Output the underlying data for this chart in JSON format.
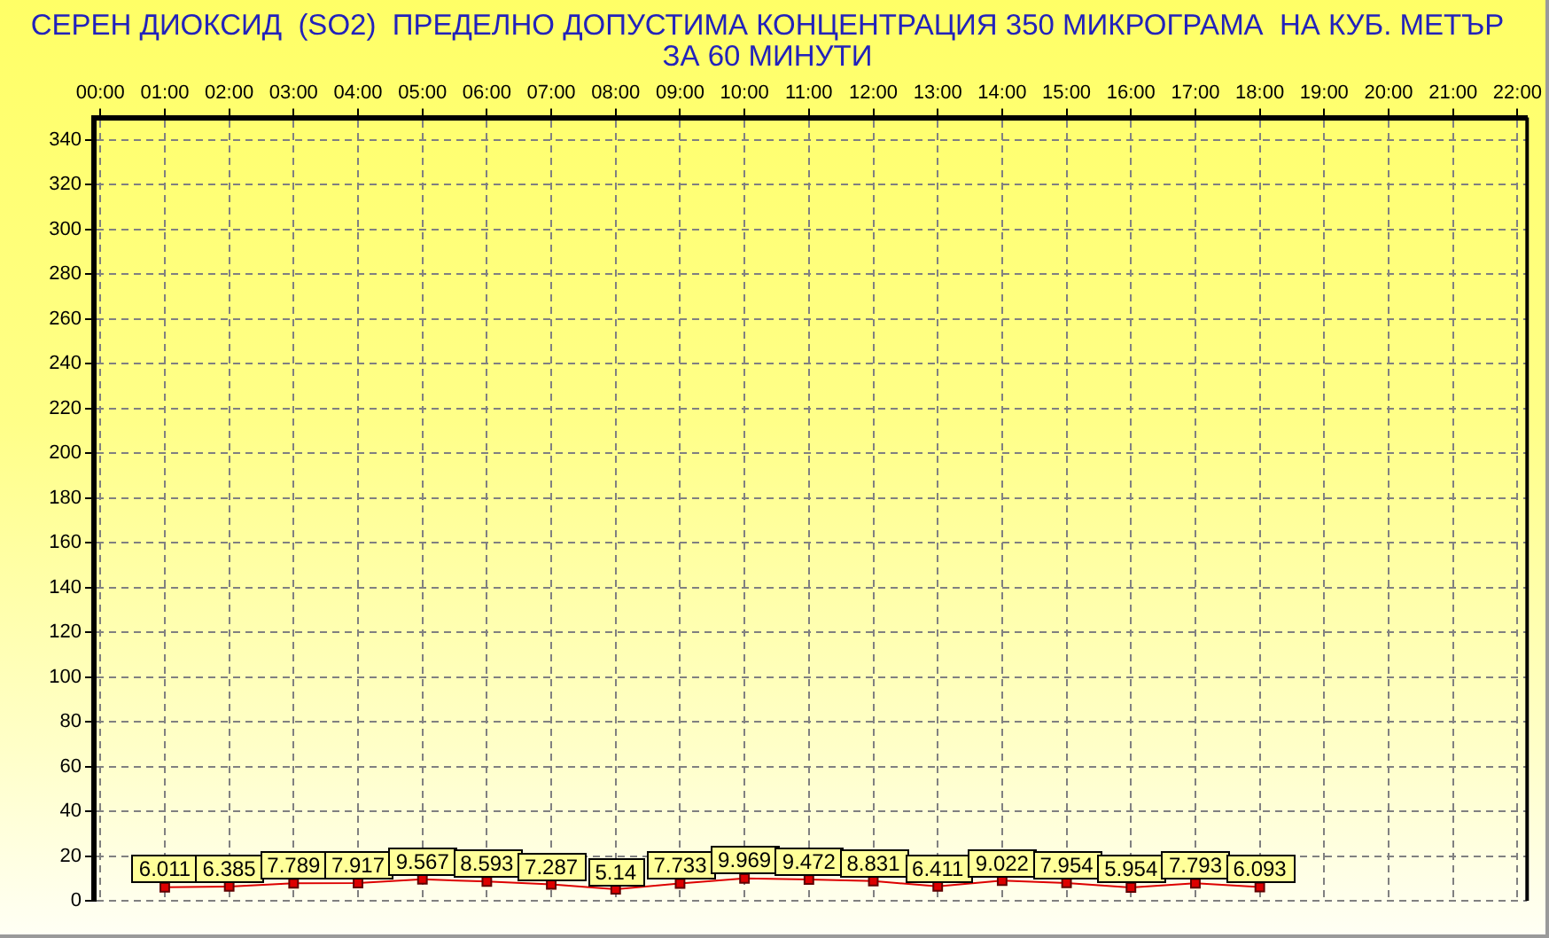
{
  "chart_data": {
    "type": "line",
    "title": "СЕРЕН ДИОКСИД  (SO2)  ПРЕДЕЛНО ДОПУСТИМА КОНЦЕНТРАЦИЯ 350 МИКРОГРАМА  НА КУБ. МЕТЪР\nЗА 60 МИНУТИ",
    "x": [
      1,
      2,
      3,
      4,
      5,
      6,
      7,
      8,
      9,
      10,
      11,
      12,
      13,
      14,
      15,
      16,
      17,
      18
    ],
    "values": [
      6.011,
      6.385,
      7.789,
      7.917,
      9.567,
      8.593,
      7.287,
      5.14,
      7.733,
      9.969,
      9.472,
      8.831,
      6.411,
      9.022,
      7.954,
      5.954,
      7.793,
      6.093
    ],
    "color": "#dd0000",
    "xlim": [
      -0.1,
      22.15
    ],
    "xticks": [
      {
        "value": 0,
        "label": "00:00"
      },
      {
        "value": 1,
        "label": "01:00"
      },
      {
        "value": 2,
        "label": "02:00"
      },
      {
        "value": 3,
        "label": "03:00"
      },
      {
        "value": 4,
        "label": "04:00"
      },
      {
        "value": 5,
        "label": "05:00"
      },
      {
        "value": 6,
        "label": "06:00"
      },
      {
        "value": 7,
        "label": "07:00"
      },
      {
        "value": 8,
        "label": "08:00"
      },
      {
        "value": 9,
        "label": "09:00"
      },
      {
        "value": 10,
        "label": "10:00"
      },
      {
        "value": 11,
        "label": "11:00"
      },
      {
        "value": 12,
        "label": "12:00"
      },
      {
        "value": 13,
        "label": "13:00"
      },
      {
        "value": 14,
        "label": "14:00"
      },
      {
        "value": 15,
        "label": "15:00"
      },
      {
        "value": 16,
        "label": "16:00"
      },
      {
        "value": 17,
        "label": "17:00"
      },
      {
        "value": 18,
        "label": "18:00"
      },
      {
        "value": 19,
        "label": "19:00"
      },
      {
        "value": 20,
        "label": "20:00"
      },
      {
        "value": 21,
        "label": "21:00"
      },
      {
        "value": 22,
        "label": "22:00"
      }
    ],
    "ylim": [
      0,
      350
    ],
    "yticks": [
      0,
      20,
      40,
      60,
      80,
      100,
      120,
      140,
      160,
      180,
      200,
      220,
      240,
      260,
      280,
      300,
      320,
      340
    ],
    "grid": true,
    "marker": "square",
    "line_style": "solid",
    "data_labels": true
  }
}
